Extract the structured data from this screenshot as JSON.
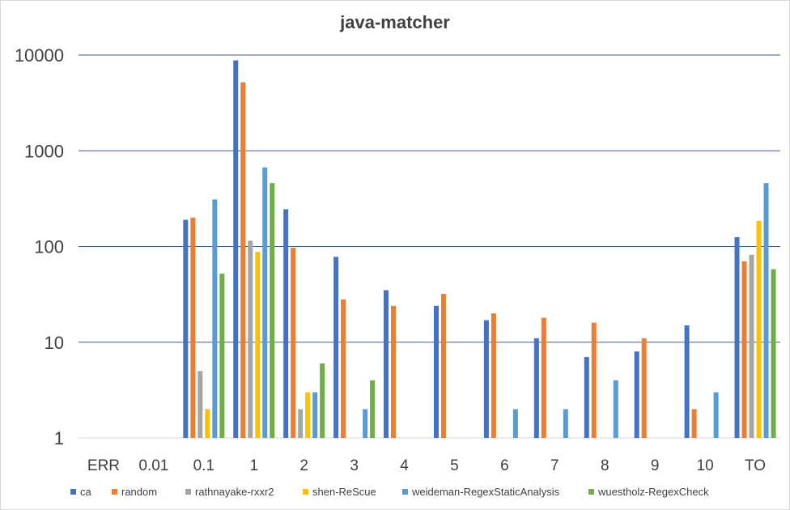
{
  "chart_data": {
    "type": "bar",
    "title": "java-matcher",
    "xlabel": "",
    "ylabel": "",
    "y_scale": "log",
    "ylim": [
      1,
      10000
    ],
    "y_ticks": [
      "1",
      "10",
      "100",
      "1000",
      "10000"
    ],
    "grid": true,
    "legend_position": "bottom",
    "categories": [
      "ERR",
      "0.01",
      "0.1",
      "1",
      "2",
      "3",
      "4",
      "5",
      "6",
      "7",
      "8",
      "9",
      "10",
      "TO"
    ],
    "series": [
      {
        "name": "ca",
        "color": "#4472c4",
        "values": [
          null,
          null,
          190,
          8800,
          245,
          78,
          35,
          24,
          17,
          11,
          7,
          8,
          15,
          125
        ]
      },
      {
        "name": "random",
        "color": "#ed7d31",
        "values": [
          null,
          null,
          200,
          5200,
          97,
          28,
          24,
          32,
          20,
          18,
          16,
          11,
          2,
          70
        ]
      },
      {
        "name": "rathnayake-rxxr2",
        "color": "#a5a5a5",
        "values": [
          null,
          null,
          5,
          115,
          2,
          null,
          null,
          null,
          null,
          null,
          null,
          null,
          null,
          82
        ]
      },
      {
        "name": "shen-ReScue",
        "color": "#ffc000",
        "values": [
          null,
          null,
          2,
          88,
          3,
          null,
          null,
          null,
          null,
          null,
          null,
          null,
          null,
          185
        ]
      },
      {
        "name": "weideman-RegexStaticAnalysis",
        "color": "#5b9bd5",
        "values": [
          null,
          null,
          310,
          670,
          3,
          2,
          null,
          null,
          2,
          2,
          4,
          null,
          3,
          460
        ]
      },
      {
        "name": "wuestholz-RegexCheck",
        "color": "#70ad47",
        "values": [
          null,
          null,
          52,
          460,
          6,
          4,
          null,
          null,
          null,
          null,
          null,
          null,
          null,
          58
        ]
      }
    ]
  }
}
